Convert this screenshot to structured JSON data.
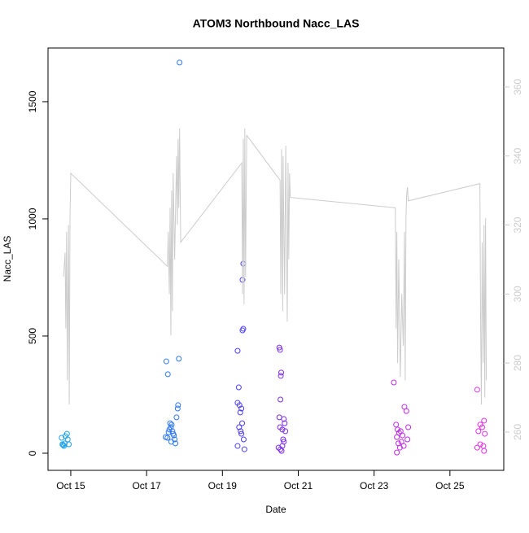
{
  "chart_data": {
    "type": "scatter",
    "title": "ATOM3 Northbound Nacc_LAS",
    "xlabel": "Date",
    "ylabel": "Nacc_LAS",
    "xlim": [
      14.4,
      26.42
    ],
    "xticks": [
      {
        "value": 15,
        "label": "Oct 15"
      },
      {
        "value": 17,
        "label": "Oct 17"
      },
      {
        "value": 19,
        "label": "Oct 19"
      },
      {
        "value": 21,
        "label": "Oct 21"
      },
      {
        "value": 23,
        "label": "Oct 23"
      },
      {
        "value": 25,
        "label": "Oct 25"
      }
    ],
    "ylim": [
      -73,
      1729
    ],
    "yticks": [
      0,
      500,
      1000,
      1500
    ],
    "y2lim": [
      248.9,
      371.3
    ],
    "y2ticks": [
      260,
      280,
      300,
      320,
      340,
      360
    ],
    "y2color": "#cccccc",
    "series": [
      {
        "type": "points",
        "color": "#1ca0ea",
        "x": [
          14.76,
          14.78,
          14.8,
          14.82,
          14.84,
          14.86,
          14.9,
          14.92,
          14.95
        ],
        "values": [
          66,
          38,
          35,
          31,
          42,
          73,
          83,
          59,
          38
        ]
      },
      {
        "type": "points",
        "color": "#2e78f2",
        "x": [
          17.52,
          17.56,
          17.87,
          17.85,
          17.83,
          17.82,
          17.79,
          17.62,
          17.64,
          17.66,
          17.6,
          17.68,
          17.58,
          17.7,
          17.72,
          17.55,
          17.74,
          17.65,
          17.76,
          17.5
        ],
        "values": [
          392,
          337,
          1667,
          403,
          205,
          191,
          153,
          128,
          111,
          122,
          101,
          94,
          90,
          83,
          76,
          66,
          59,
          49,
          42,
          69
        ]
      },
      {
        "type": "points",
        "color": "#4a3df0",
        "x": [
          19.55,
          19.53,
          19.55,
          19.53,
          19.4,
          19.43,
          19.4,
          19.45,
          19.5,
          19.47,
          19.52,
          19.44,
          19.48,
          19.5,
          19.56,
          19.4,
          19.58
        ],
        "values": [
          809,
          740,
          531,
          524,
          437,
          281,
          215,
          205,
          191,
          174,
          128,
          111,
          94,
          83,
          59,
          31,
          17
        ]
      },
      {
        "type": "points",
        "color": "#7a2ae6",
        "x": [
          20.5,
          20.52,
          20.55,
          20.54,
          20.53,
          20.5,
          20.62,
          20.64,
          20.52,
          20.58,
          20.66,
          20.6,
          20.62,
          20.58,
          20.48,
          20.53,
          20.56
        ],
        "values": [
          451,
          441,
          344,
          330,
          229,
          153,
          146,
          128,
          111,
          101,
          94,
          59,
          49,
          31,
          24,
          17,
          10
        ]
      },
      {
        "type": "points",
        "color": "#c02ae6",
        "x": [
          23.52,
          23.8,
          23.85,
          23.58,
          23.9,
          23.62,
          23.7,
          23.66,
          23.75,
          23.6,
          23.88,
          23.72,
          23.64,
          23.78,
          23.68,
          23.6
        ],
        "values": [
          302,
          198,
          180,
          122,
          111,
          101,
          94,
          87,
          76,
          69,
          59,
          49,
          42,
          31,
          24,
          3
        ]
      },
      {
        "type": "points",
        "color": "#e02ee6",
        "x": [
          25.72,
          25.9,
          25.8,
          25.85,
          25.75,
          25.92,
          25.8,
          25.88,
          25.72,
          25.9
        ],
        "values": [
          271,
          139,
          122,
          111,
          94,
          83,
          38,
          31,
          24,
          10
        ]
      },
      {
        "type": "line",
        "axis": "y2",
        "color": "#cccccc",
        "x": [
          14.81,
          14.85,
          14.87,
          14.89,
          14.91,
          14.94,
          14.96,
          14.98,
          15.0,
          17.55,
          17.57,
          17.6,
          17.62,
          17.64,
          17.66,
          17.68,
          17.7,
          17.74,
          17.79,
          17.81,
          17.83,
          17.85,
          17.87,
          17.9,
          19.51,
          19.53,
          19.55,
          19.57,
          19.59,
          19.61,
          19.64,
          20.52,
          20.54,
          20.56,
          20.59,
          20.6,
          20.64,
          20.67,
          20.71,
          20.73,
          20.75,
          20.77,
          20.79,
          23.56,
          23.58,
          23.6,
          23.62,
          23.65,
          23.69,
          23.73,
          23.77,
          23.8,
          23.82,
          23.84,
          23.86,
          23.88,
          23.9,
          25.79,
          25.81,
          25.83,
          25.85,
          25.88,
          25.9,
          25.92,
          25.94,
          25.96
        ],
        "values": [
          305,
          312,
          290,
          318,
          275,
          320,
          268,
          322,
          335,
          308,
          318,
          300,
          325,
          288,
          330,
          295,
          335,
          310,
          340,
          320,
          345,
          325,
          348,
          315,
          338,
          300,
          345,
          297,
          348,
          305,
          346,
          333,
          300,
          342,
          295,
          340,
          300,
          343,
          292,
          338,
          310,
          335,
          328,
          325,
          290,
          318,
          280,
          310,
          276,
          300,
          285,
          318,
          275,
          322,
          329,
          331,
          327,
          332,
          290,
          268,
          315,
          280,
          320,
          270,
          322,
          275
        ]
      }
    ]
  }
}
